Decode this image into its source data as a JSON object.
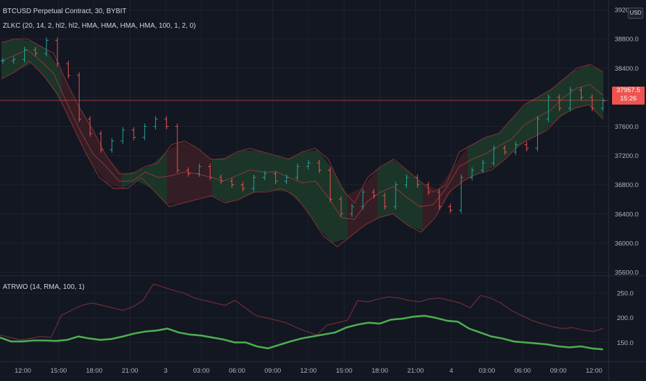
{
  "header": {
    "symbol_line": "BTCUSD Perpetual Contract, 30, BYBIT",
    "indicator_line": "ZLKC (20, 14, 2, hl2, hl2, HMA, HMA, HMA, HMA, 100, 1, 2, 0)",
    "lower_indicator_line": "ATRWO (14, RMA, 100, 1)",
    "currency": "USD"
  },
  "price_box": {
    "price": "37957.5",
    "countdown": "15:26"
  },
  "colors": {
    "background": "#131722",
    "up_candle": "#26a69a",
    "down_candle": "#ef5350",
    "band_line": "#7a2f35",
    "band_green_fill": "#1f3b2a",
    "band_red_fill": "#3b1f24",
    "atr_thin": "#7a2f35",
    "atr_thick": "#4caf50",
    "price_line": "#ef5350"
  },
  "chart_data": [
    {
      "type": "line",
      "title": "BTCUSD Perpetual Contract, 30, BYBIT",
      "ylim": [
        35600,
        39200
      ],
      "y_ticks": [
        "35600.0",
        "36000.0",
        "36400.0",
        "36800.0",
        "37200.0",
        "37600.0",
        "38000.0",
        "38400.0",
        "38800.0",
        "39200.0"
      ],
      "x_ticks": [
        "12:00",
        "15:00",
        "18:00",
        "21:00",
        "3",
        "03:00",
        "06:00",
        "09:00",
        "12:00",
        "15:00",
        "18:00",
        "21:00",
        "4",
        "03:00",
        "06:00",
        "09:00",
        "12:00"
      ],
      "last_price": 37957.5,
      "series": [
        {
          "name": "close",
          "values": [
            38500,
            38520,
            38650,
            38600,
            38780,
            38460,
            38300,
            37700,
            37500,
            37280,
            37400,
            37550,
            37450,
            37600,
            37700,
            37600,
            37000,
            36950,
            37050,
            36900,
            36850,
            36800,
            36750,
            36900,
            36950,
            36850,
            36900,
            37050,
            37100,
            37000,
            36600,
            36400,
            36500,
            36700,
            36650,
            36500,
            36800,
            36900,
            36800,
            36700,
            36500,
            36450,
            36900,
            37000,
            37100,
            37300,
            37250,
            37350,
            37300,
            37700,
            38000,
            37850,
            38100,
            38000,
            37850,
            37950
          ]
        },
        {
          "name": "band_upper",
          "values": [
            38750,
            38800,
            38800,
            38700,
            38600,
            38200,
            37850,
            37550,
            37200,
            36950,
            36950,
            37050,
            37100,
            37350,
            37400,
            37300,
            37150,
            37150,
            37250,
            37300,
            37250,
            37200,
            37150,
            37250,
            37300,
            37150,
            36750,
            36550,
            36900,
            37050,
            37150,
            37000,
            36850,
            36700,
            36800,
            37250,
            37350,
            37450,
            37500,
            37700,
            37900,
            38000,
            38100,
            38250,
            38400,
            38450,
            38350
          ]
        },
        {
          "name": "band_lower",
          "values": [
            38250,
            38350,
            38500,
            38300,
            38050,
            37650,
            37250,
            36900,
            36750,
            36750,
            36900,
            36700,
            36500,
            36550,
            36600,
            36650,
            36550,
            36600,
            36700,
            36700,
            36750,
            36650,
            36400,
            36100,
            35950,
            36100,
            36250,
            36350,
            36400,
            36250,
            36150,
            36350,
            36700,
            36850,
            36950,
            37000,
            37150,
            37350,
            37450,
            37550,
            37750,
            37850,
            37900,
            37700
          ]
        }
      ]
    },
    {
      "type": "line",
      "title": "ATRWO (14, RMA, 100, 1)",
      "ylim": [
        125,
        270
      ],
      "y_ticks": [
        "150.0",
        "200.0",
        "250.0"
      ],
      "series": [
        {
          "name": "upper",
          "values": [
            165,
            160,
            155,
            158,
            162,
            160,
            205,
            215,
            225,
            230,
            225,
            220,
            215,
            222,
            235,
            268,
            262,
            255,
            250,
            240,
            235,
            230,
            225,
            235,
            220,
            205,
            200,
            195,
            190,
            180,
            172,
            165,
            185,
            190,
            195,
            235,
            232,
            238,
            242,
            240,
            235,
            232,
            238,
            240,
            235,
            230,
            220,
            245,
            240,
            230,
            215,
            205,
            195,
            188,
            182,
            178,
            180,
            175,
            172,
            178
          ]
        },
        {
          "name": "atrwo",
          "values": [
            160,
            152,
            152,
            154,
            154,
            153,
            155,
            162,
            158,
            155,
            157,
            162,
            168,
            172,
            174,
            178,
            170,
            166,
            164,
            160,
            156,
            150,
            150,
            142,
            138,
            145,
            152,
            158,
            162,
            166,
            170,
            180,
            186,
            190,
            188,
            196,
            198,
            202,
            204,
            200,
            194,
            192,
            178,
            170,
            162,
            158,
            152,
            150,
            148,
            146,
            142,
            140,
            142,
            138,
            136
          ]
        }
      ]
    }
  ]
}
